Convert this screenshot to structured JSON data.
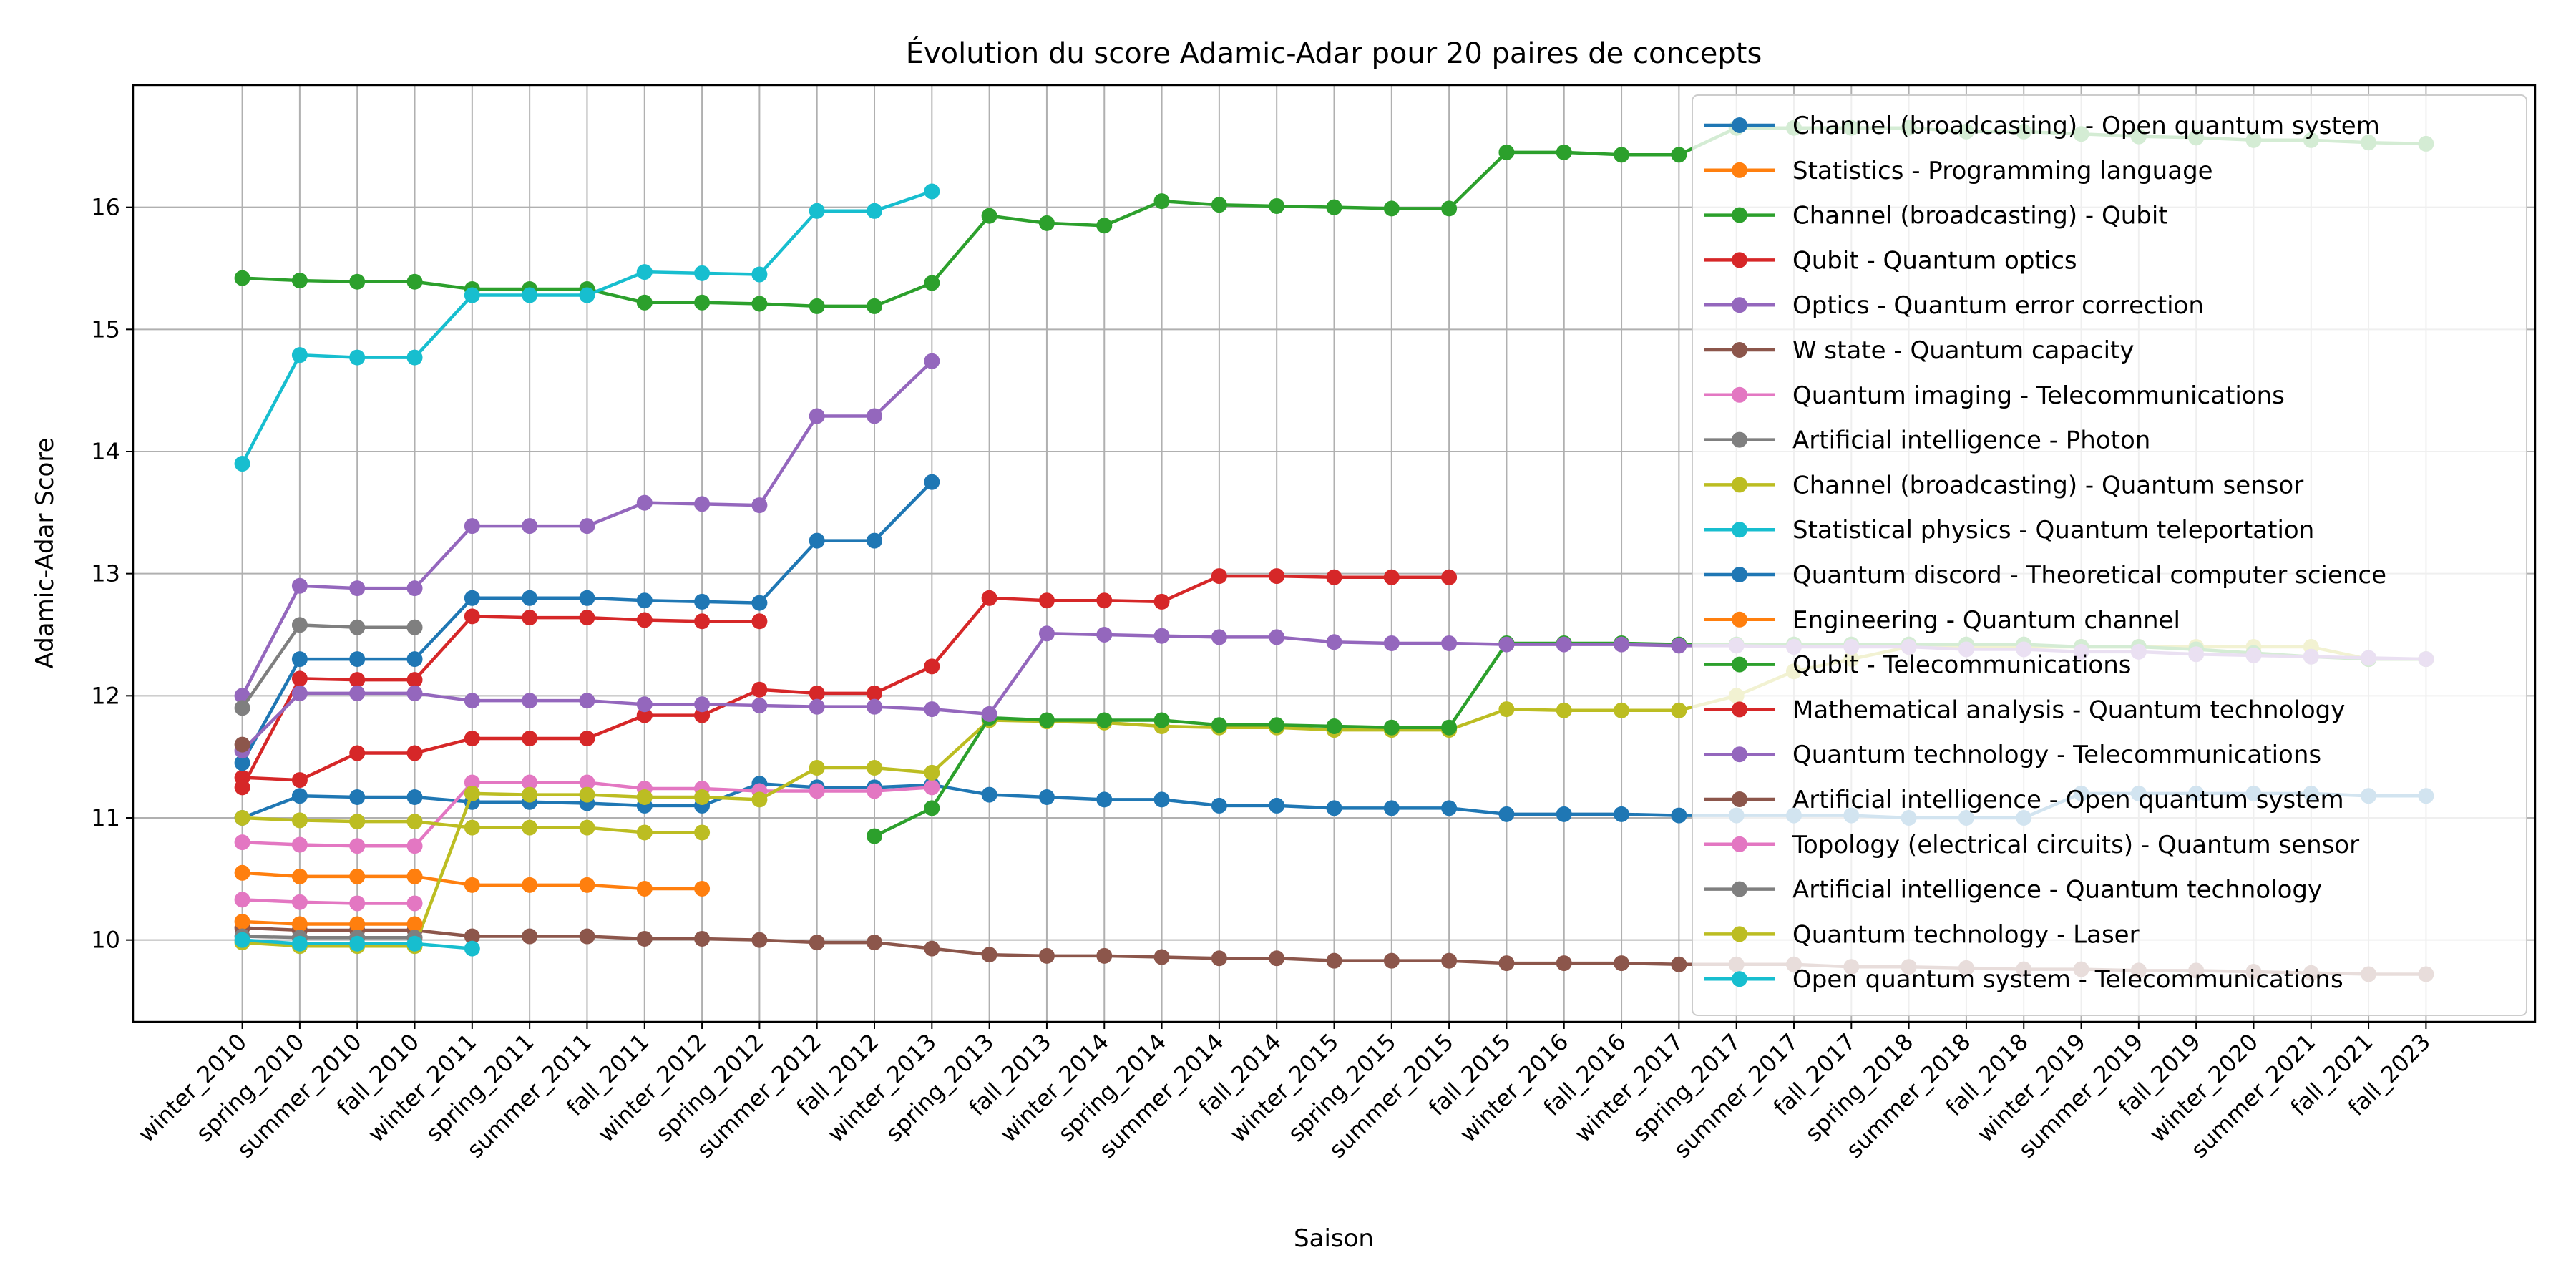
{
  "chart_data": {
    "type": "line",
    "title": "Évolution du score Adamic-Adar pour 20 paires de concepts",
    "xlabel": "Saison",
    "ylabel": "Adamic-Adar Score",
    "categories": [
      "winter_2010",
      "spring_2010",
      "summer_2010",
      "fall_2010",
      "winter_2011",
      "spring_2011",
      "summer_2011",
      "fall_2011",
      "winter_2012",
      "spring_2012",
      "summer_2012",
      "fall_2012",
      "winter_2013",
      "spring_2013",
      "fall_2013",
      "winter_2014",
      "spring_2014",
      "summer_2014",
      "fall_2014",
      "winter_2015",
      "spring_2015",
      "summer_2015",
      "fall_2015",
      "winter_2016",
      "fall_2016",
      "winter_2017",
      "spring_2017",
      "summer_2017",
      "fall_2017",
      "spring_2018",
      "summer_2018",
      "fall_2018",
      "winter_2019",
      "summer_2019",
      "fall_2019",
      "winter_2020",
      "summer_2021",
      "fall_2021",
      "fall_2023"
    ],
    "ylim": [
      9.33,
      17.0
    ],
    "yticks": [
      10,
      11,
      12,
      13,
      14,
      15,
      16
    ],
    "grid": true,
    "legend": "upper right",
    "series": [
      {
        "name": "Channel (broadcasting) - Open quantum system",
        "color": "#1f77b4",
        "values": [
          11.0,
          11.18,
          11.17,
          11.17,
          11.13,
          11.13,
          11.12,
          11.1,
          11.1,
          11.28,
          11.25,
          11.25,
          11.27,
          11.19,
          11.17,
          11.15,
          11.15,
          11.1,
          11.1,
          11.08,
          11.08,
          11.08,
          11.03,
          11.03,
          11.03,
          11.02,
          11.02,
          11.02,
          11.02,
          11.0,
          11.0,
          11.0,
          11.2,
          11.2,
          11.2,
          11.2,
          11.2,
          11.18,
          11.18
        ]
      },
      {
        "name": "Statistics - Programming language",
        "color": "#ff7f0e",
        "values": [
          10.55,
          10.52,
          10.52,
          10.52,
          10.45,
          10.45,
          10.45,
          10.42,
          10.42,
          null,
          null,
          null,
          null,
          null,
          null,
          null,
          null,
          null,
          null,
          null,
          null,
          null,
          null,
          null,
          null,
          null,
          null,
          null,
          null,
          null,
          null,
          null,
          null,
          null,
          null,
          null,
          null,
          null,
          null
        ]
      },
      {
        "name": "Channel (broadcasting) - Qubit",
        "color": "#2ca02c",
        "values": [
          15.42,
          15.4,
          15.39,
          15.39,
          15.33,
          15.33,
          15.33,
          15.22,
          15.22,
          15.21,
          15.19,
          15.19,
          15.38,
          15.93,
          15.87,
          15.85,
          16.05,
          16.02,
          16.01,
          16.0,
          15.99,
          15.99,
          16.45,
          16.45,
          16.43,
          16.43,
          16.65,
          16.65,
          16.65,
          16.65,
          16.62,
          16.62,
          16.6,
          16.58,
          16.57,
          16.55,
          16.55,
          16.53,
          16.52
        ]
      },
      {
        "name": "Qubit - Quantum optics",
        "color": "#d62728",
        "values": [
          11.33,
          11.31,
          11.53,
          11.53,
          11.65,
          11.65,
          11.65,
          11.84,
          11.84,
          12.05,
          12.02,
          12.02,
          12.24,
          12.8,
          12.78,
          12.78,
          12.77,
          12.98,
          12.98,
          12.97,
          12.97,
          12.97,
          null,
          null,
          null,
          null,
          null,
          null,
          null,
          null,
          null,
          null,
          null,
          null,
          null,
          null,
          null,
          null,
          null
        ]
      },
      {
        "name": "Optics - Quantum error correction",
        "color": "#9467bd",
        "values": [
          12.0,
          12.9,
          12.88,
          12.88,
          13.39,
          13.39,
          13.39,
          13.58,
          13.57,
          13.56,
          14.29,
          14.29,
          14.74,
          null,
          null,
          null,
          null,
          null,
          null,
          null,
          null,
          null,
          null,
          null,
          null,
          null,
          null,
          null,
          null,
          null,
          null,
          null,
          null,
          null,
          null,
          null,
          null,
          null,
          null
        ]
      },
      {
        "name": "W state - Quantum capacity",
        "color": "#8c564b",
        "values": [
          10.1,
          10.08,
          10.08,
          10.08,
          10.03,
          10.03,
          10.03,
          10.01,
          10.01,
          10.0,
          9.98,
          9.98,
          9.93,
          9.88,
          9.87,
          9.87,
          9.86,
          9.85,
          9.85,
          9.83,
          9.83,
          9.83,
          9.81,
          9.81,
          9.81,
          9.8,
          9.8,
          9.8,
          9.78,
          9.78,
          9.77,
          9.76,
          9.76,
          9.75,
          9.75,
          9.74,
          9.73,
          9.72,
          9.72
        ]
      },
      {
        "name": "Quantum imaging - Telecommunications",
        "color": "#e377c2",
        "values": [
          10.8,
          10.78,
          10.77,
          10.77,
          11.29,
          11.29,
          11.29,
          11.24,
          11.24,
          11.22,
          11.22,
          11.22,
          11.25,
          null,
          null,
          null,
          null,
          null,
          null,
          null,
          null,
          null,
          null,
          null,
          null,
          null,
          null,
          null,
          null,
          null,
          null,
          null,
          null,
          null,
          null,
          null,
          null,
          null,
          null
        ]
      },
      {
        "name": "Artificial intelligence - Photon",
        "color": "#7f7f7f",
        "values": [
          11.9,
          12.58,
          12.56,
          12.56,
          null,
          null,
          null,
          null,
          null,
          null,
          null,
          null,
          null,
          null,
          null,
          null,
          null,
          null,
          null,
          null,
          null,
          null,
          null,
          null,
          null,
          null,
          null,
          null,
          null,
          null,
          null,
          null,
          null,
          null,
          null,
          null,
          null,
          null,
          null
        ]
      },
      {
        "name": "Channel (broadcasting) - Quantum sensor",
        "color": "#bcbd22",
        "values": [
          9.98,
          9.95,
          9.95,
          9.95,
          11.2,
          11.19,
          11.19,
          11.17,
          11.17,
          11.15,
          11.41,
          11.41,
          11.37,
          11.8,
          11.79,
          11.78,
          11.75,
          11.74,
          11.74,
          11.72,
          11.72,
          11.72,
          11.89,
          11.88,
          11.88,
          11.88,
          12.0,
          12.2,
          12.3,
          12.4,
          12.4,
          12.4,
          12.4,
          12.4,
          12.4,
          12.4,
          12.4,
          12.3,
          12.3
        ]
      },
      {
        "name": "Statistical physics - Quantum teleportation",
        "color": "#17becf",
        "values": [
          13.9,
          14.79,
          14.77,
          14.77,
          15.28,
          15.28,
          15.28,
          15.47,
          15.46,
          15.45,
          15.97,
          15.97,
          16.13,
          null,
          null,
          null,
          null,
          null,
          null,
          null,
          null,
          null,
          null,
          null,
          null,
          null,
          null,
          null,
          null,
          null,
          null,
          null,
          null,
          null,
          null,
          null,
          null,
          null,
          null
        ]
      },
      {
        "name": "Quantum discord - Theoretical computer science",
        "color": "#1f77b4",
        "values": [
          11.45,
          12.3,
          12.3,
          12.3,
          12.8,
          12.8,
          12.8,
          12.78,
          12.77,
          12.76,
          13.27,
          13.27,
          13.75,
          null,
          null,
          null,
          null,
          null,
          null,
          null,
          null,
          null,
          null,
          null,
          null,
          null,
          null,
          null,
          null,
          null,
          null,
          null,
          null,
          null,
          null,
          null,
          null,
          null,
          null
        ]
      },
      {
        "name": "Engineering - Quantum channel",
        "color": "#ff7f0e",
        "values": [
          10.15,
          10.13,
          10.13,
          10.13,
          null,
          null,
          null,
          null,
          null,
          null,
          null,
          null,
          null,
          null,
          null,
          null,
          null,
          null,
          null,
          null,
          null,
          null,
          null,
          null,
          null,
          null,
          null,
          null,
          null,
          null,
          null,
          null,
          null,
          null,
          null,
          null,
          null,
          null,
          null
        ]
      },
      {
        "name": "Qubit - Telecommunications",
        "color": "#2ca02c",
        "values": [
          null,
          null,
          null,
          null,
          null,
          null,
          null,
          null,
          null,
          null,
          null,
          10.85,
          11.08,
          11.82,
          11.8,
          11.8,
          11.8,
          11.76,
          11.76,
          11.75,
          11.74,
          11.74,
          12.43,
          12.43,
          12.43,
          12.42,
          12.42,
          12.42,
          12.42,
          12.42,
          12.42,
          12.42,
          12.4,
          12.4,
          12.38,
          12.35,
          12.32,
          12.3,
          12.3
        ]
      },
      {
        "name": "Mathematical analysis - Quantum technology",
        "color": "#d62728",
        "values": [
          11.25,
          12.14,
          12.13,
          12.13,
          12.65,
          12.64,
          12.64,
          12.62,
          12.61,
          12.61,
          null,
          null,
          null,
          null,
          null,
          null,
          null,
          null,
          null,
          null,
          null,
          null,
          null,
          null,
          null,
          null,
          null,
          null,
          null,
          null,
          null,
          null,
          null,
          null,
          null,
          null,
          null,
          null,
          null
        ]
      },
      {
        "name": "Quantum technology - Telecommunications",
        "color": "#9467bd",
        "values": [
          11.55,
          12.02,
          12.02,
          12.02,
          11.96,
          11.96,
          11.96,
          11.93,
          11.93,
          11.92,
          11.91,
          11.91,
          11.89,
          11.85,
          12.51,
          12.5,
          12.49,
          12.48,
          12.48,
          12.44,
          12.43,
          12.43,
          12.42,
          12.42,
          12.42,
          12.41,
          12.41,
          12.4,
          12.4,
          12.4,
          12.38,
          12.38,
          12.36,
          12.36,
          12.34,
          12.33,
          12.32,
          12.31,
          12.3
        ]
      },
      {
        "name": "Artificial intelligence - Open quantum system",
        "color": "#8c564b",
        "values": [
          11.6,
          null,
          null,
          null,
          null,
          null,
          null,
          null,
          null,
          null,
          null,
          null,
          null,
          null,
          null,
          null,
          null,
          null,
          null,
          null,
          null,
          null,
          null,
          null,
          null,
          null,
          null,
          null,
          null,
          null,
          null,
          null,
          null,
          null,
          null,
          null,
          null,
          null,
          null
        ]
      },
      {
        "name": "Topology (electrical circuits) - Quantum sensor",
        "color": "#e377c2",
        "values": [
          10.33,
          10.31,
          10.3,
          10.3,
          null,
          null,
          null,
          null,
          null,
          null,
          null,
          null,
          null,
          null,
          null,
          null,
          null,
          null,
          null,
          null,
          null,
          null,
          null,
          null,
          null,
          null,
          null,
          null,
          null,
          null,
          null,
          null,
          null,
          null,
          null,
          null,
          null,
          null,
          null
        ]
      },
      {
        "name": "Artificial intelligence - Quantum technology",
        "color": "#7f7f7f",
        "values": [
          10.03,
          10.02,
          10.02,
          10.02,
          null,
          null,
          null,
          null,
          null,
          null,
          null,
          null,
          null,
          null,
          null,
          null,
          null,
          null,
          null,
          null,
          null,
          null,
          null,
          null,
          null,
          null,
          null,
          null,
          null,
          null,
          null,
          null,
          null,
          null,
          null,
          null,
          null,
          null,
          null
        ]
      },
      {
        "name": "Quantum technology - Laser",
        "color": "#bcbd22",
        "values": [
          11.0,
          10.98,
          10.97,
          10.97,
          10.92,
          10.92,
          10.92,
          10.88,
          10.88,
          null,
          null,
          null,
          null,
          null,
          null,
          null,
          null,
          null,
          null,
          null,
          null,
          null,
          null,
          null,
          null,
          null,
          null,
          null,
          null,
          null,
          null,
          null,
          null,
          null,
          null,
          null,
          null,
          null,
          null
        ]
      },
      {
        "name": "Open quantum system - Telecommunications",
        "color": "#17becf",
        "values": [
          10.0,
          9.97,
          9.97,
          9.97,
          9.93,
          null,
          null,
          null,
          null,
          null,
          null,
          null,
          null,
          null,
          null,
          null,
          null,
          null,
          null,
          null,
          null,
          null,
          null,
          null,
          null,
          null,
          null,
          null,
          null,
          null,
          null,
          null,
          null,
          null,
          null,
          null,
          null,
          null,
          null
        ]
      }
    ]
  }
}
